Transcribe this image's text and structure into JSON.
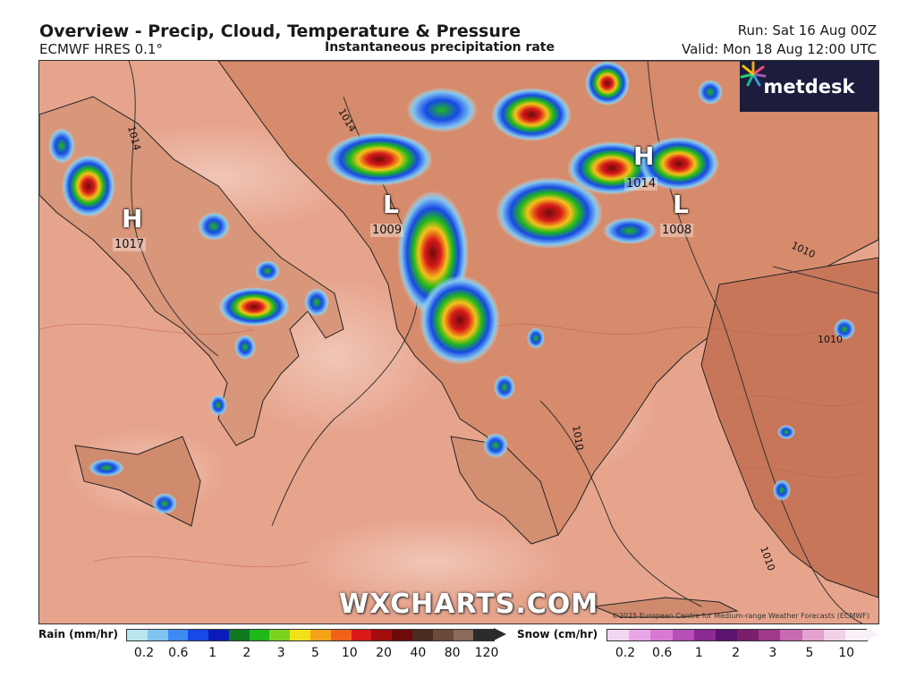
{
  "header": {
    "title": "Overview - Precip, Cloud, Temperature & Pressure",
    "model": "ECMWF HRES 0.1°",
    "layer": "Instantaneous precipitation rate",
    "run": "Run: Sat 16 Aug 00Z",
    "valid": "Valid: Mon 18 Aug 12:00 UTC"
  },
  "branding": {
    "logo_text": "metdesk",
    "watermark": "WXCHARTS.COM",
    "copyright": "©2025 European Centre for Medium-range Weather Forecasts (ECMWF)"
  },
  "pressure_centers": [
    {
      "type": "H",
      "value": "1017"
    },
    {
      "type": "L",
      "value": "1009"
    },
    {
      "type": "H",
      "value": "1014"
    },
    {
      "type": "L",
      "value": "1008"
    }
  ],
  "isobar_labels": [
    "1014",
    "1014",
    "1010",
    "1010",
    "1010",
    "1010"
  ],
  "legend": {
    "rain": {
      "label": "Rain (mm/hr)",
      "colors": [
        "#b9e7ef",
        "#7fc4f0",
        "#3d8bf2",
        "#1749e6",
        "#0a1bb8",
        "#0f7a1f",
        "#1fb81a",
        "#7ad41f",
        "#f2e01a",
        "#f5a21a",
        "#f0621a",
        "#d91a1a",
        "#a10d0d",
        "#6e0a0a",
        "#4a2b1f",
        "#6b4a3a",
        "#8a6a5a",
        "#2b2b2b"
      ],
      "ticks": [
        "0.2",
        "0.6",
        "1",
        "2",
        "3",
        "5",
        "10",
        "20",
        "40",
        "80",
        "120"
      ]
    },
    "snow": {
      "label": "Snow (cm/hr)",
      "colors": [
        "#f3d6f2",
        "#e7a6e6",
        "#d77ad6",
        "#b64fb8",
        "#8c2a93",
        "#5a1470",
        "#7b1e6c",
        "#a03a88",
        "#c86ab0",
        "#e3a1cf",
        "#f2d0e6",
        "#faf0f8"
      ],
      "ticks": [
        "0.2",
        "0.6",
        "1",
        "2",
        "3",
        "5",
        "10"
      ]
    }
  },
  "colors": {
    "sea": "#e7a48c",
    "land": "#e4ad8f",
    "hot_land": "#d98a6a",
    "rain_core": "#d81c1c",
    "rain_outer": "#1b4fe6",
    "logo_bg": "#1c1d3c"
  }
}
